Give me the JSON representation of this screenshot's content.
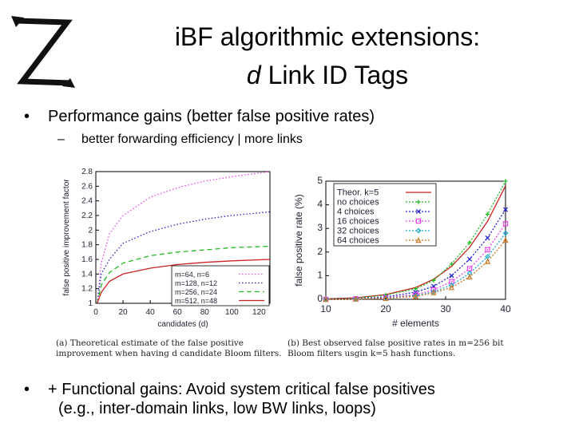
{
  "slide": {
    "title_line1": "iBF algorithmic extensions:",
    "title_line2_em": "d",
    "title_line2_rest": " Link ID Tags",
    "bullet_symbol": "•",
    "bullet1": "Performance gains (better false positive rates)",
    "sub_dash": "–",
    "sub1": "better forwarding efficiency | more links",
    "bullet2_line1": "+ Functional gains: Avoid system critical false positives",
    "bullet2_line2": "(e.g., inter-domain links, low BW links, loops)"
  },
  "caption_a": "(a) Theoretical estimate of the false positive improvement when having d candidate Bloom filters.",
  "caption_b": "(b) Best observed false positive rates in m=256 bit Bloom filters usgin k=5 hash functions.",
  "chart_data": [
    {
      "type": "line",
      "xlabel": "candidates (d)",
      "ylabel": "false positive improvement factor",
      "xlim": [
        0,
        128
      ],
      "ylim": [
        1,
        2.8
      ],
      "x_ticks": [
        "0",
        "20",
        "40",
        "60",
        "80",
        "100",
        "120"
      ],
      "y_ticks": [
        "1",
        "1.2",
        "1.4",
        "1.6",
        "1.8",
        "2",
        "2.2",
        "2.4",
        "2.6",
        "2.8"
      ],
      "legend_position": "bottom-right",
      "series": [
        {
          "name": "m=64, n=6",
          "color": "#ee44ee",
          "dash": "dot",
          "x": [
            1,
            4,
            10,
            20,
            40,
            60,
            80,
            100,
            128
          ],
          "y": [
            1.0,
            1.55,
            1.95,
            2.2,
            2.45,
            2.58,
            2.67,
            2.73,
            2.8
          ]
        },
        {
          "name": "m=128, n=12",
          "color": "#2222cc",
          "dash": "dot",
          "x": [
            1,
            4,
            10,
            20,
            40,
            60,
            80,
            100,
            128
          ],
          "y": [
            1.0,
            1.4,
            1.6,
            1.82,
            1.98,
            2.08,
            2.15,
            2.2,
            2.25
          ]
        },
        {
          "name": "m=256, n=24",
          "color": "#22bb22",
          "dash": "dash",
          "x": [
            1,
            4,
            10,
            20,
            40,
            60,
            80,
            100,
            128
          ],
          "y": [
            1.0,
            1.25,
            1.42,
            1.55,
            1.65,
            1.7,
            1.73,
            1.76,
            1.78
          ]
        },
        {
          "name": "m=512, n=48",
          "color": "#cc2222",
          "dash": "solid",
          "x": [
            1,
            4,
            10,
            20,
            40,
            60,
            80,
            100,
            128
          ],
          "y": [
            1.0,
            1.15,
            1.3,
            1.4,
            1.48,
            1.53,
            1.56,
            1.58,
            1.6
          ]
        }
      ]
    },
    {
      "type": "line",
      "xlabel": "# elements",
      "ylabel": "false positive rate (%)",
      "xlim": [
        10,
        40
      ],
      "ylim": [
        0,
        5
      ],
      "x_ticks": [
        "10",
        "20",
        "30",
        "40"
      ],
      "y_ticks": [
        "0",
        "1",
        "2",
        "3",
        "4",
        "5"
      ],
      "legend_position": "top-left",
      "series": [
        {
          "name": "Theor. k=5",
          "color": "#cc2222",
          "marker": "none",
          "x": [
            10,
            15,
            20,
            25,
            28,
            31,
            34,
            37,
            40
          ],
          "y": [
            0.02,
            0.06,
            0.2,
            0.5,
            0.85,
            1.4,
            2.2,
            3.3,
            4.8
          ]
        },
        {
          "name": "no choices",
          "color": "#22bb22",
          "marker": "plus",
          "x": [
            10,
            15,
            20,
            25,
            28,
            31,
            34,
            37,
            40
          ],
          "y": [
            0.02,
            0.05,
            0.18,
            0.45,
            0.8,
            1.5,
            2.4,
            3.6,
            5.0
          ]
        },
        {
          "name": "4 choices",
          "color": "#2222cc",
          "marker": "x",
          "x": [
            10,
            15,
            20,
            25,
            28,
            31,
            34,
            37,
            40
          ],
          "y": [
            0.01,
            0.03,
            0.1,
            0.3,
            0.55,
            1.0,
            1.7,
            2.6,
            3.8
          ]
        },
        {
          "name": "16 choices",
          "color": "#ee44ee",
          "marker": "square",
          "x": [
            10,
            15,
            20,
            25,
            28,
            31,
            34,
            37,
            40
          ],
          "y": [
            0.0,
            0.02,
            0.06,
            0.2,
            0.4,
            0.75,
            1.3,
            2.1,
            3.2
          ]
        },
        {
          "name": "32 choices",
          "color": "#22aacc",
          "marker": "diamond",
          "x": [
            10,
            15,
            20,
            25,
            28,
            31,
            34,
            37,
            40
          ],
          "y": [
            0.0,
            0.01,
            0.05,
            0.15,
            0.32,
            0.6,
            1.1,
            1.8,
            2.8
          ]
        },
        {
          "name": "64 choices",
          "color": "#cc7722",
          "marker": "triangle",
          "x": [
            10,
            15,
            20,
            25,
            28,
            31,
            34,
            37,
            40
          ],
          "y": [
            0.0,
            0.01,
            0.04,
            0.12,
            0.28,
            0.5,
            0.95,
            1.6,
            2.5
          ]
        }
      ]
    }
  ]
}
